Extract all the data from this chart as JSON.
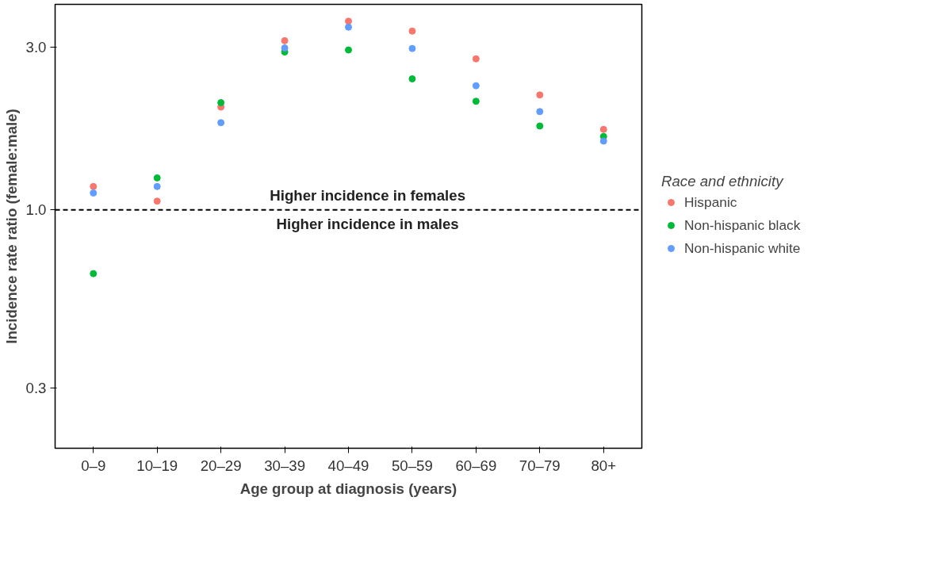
{
  "chart_data": {
    "type": "scatter",
    "xlabel": "Age group at diagnosis (years)",
    "ylabel": "Incidence rate ratio (female:male)",
    "legend_title": "Race and ethnicity",
    "categories": [
      "0–9",
      "10–19",
      "20–29",
      "30–39",
      "40–49",
      "50–59",
      "60–69",
      "70–79",
      "80+"
    ],
    "series": [
      {
        "name": "Hispanic",
        "color": "#f8766d",
        "values": [
          1.17,
          1.06,
          2.0,
          3.13,
          3.57,
          3.34,
          2.77,
          2.17,
          1.72
        ]
      },
      {
        "name": "Non-hispanic black",
        "color": "#00ba38",
        "values": [
          0.65,
          1.24,
          2.06,
          2.9,
          2.94,
          2.42,
          2.08,
          1.76,
          1.64
        ]
      },
      {
        "name": "Non-hispanic white",
        "color": "#619cff",
        "values": [
          1.12,
          1.17,
          1.8,
          2.98,
          3.43,
          2.97,
          2.31,
          1.94,
          1.59
        ]
      }
    ],
    "log": true,
    "ylim": [
      0.2,
      4
    ],
    "yticks": [
      {
        "value": 0.3,
        "label": "0.3"
      },
      {
        "value": 1,
        "label": "1.0"
      },
      {
        "value": 3,
        "label": "3.0"
      }
    ],
    "ref_lines": [
      {
        "axis": "y",
        "value": 1,
        "color": "#000000",
        "line_style": "dashed"
      }
    ],
    "annotations": [
      "Higher incidence in females",
      "Higher incidence in males"
    ],
    "grid": false,
    "legend": "right",
    "marker": "circle"
  }
}
